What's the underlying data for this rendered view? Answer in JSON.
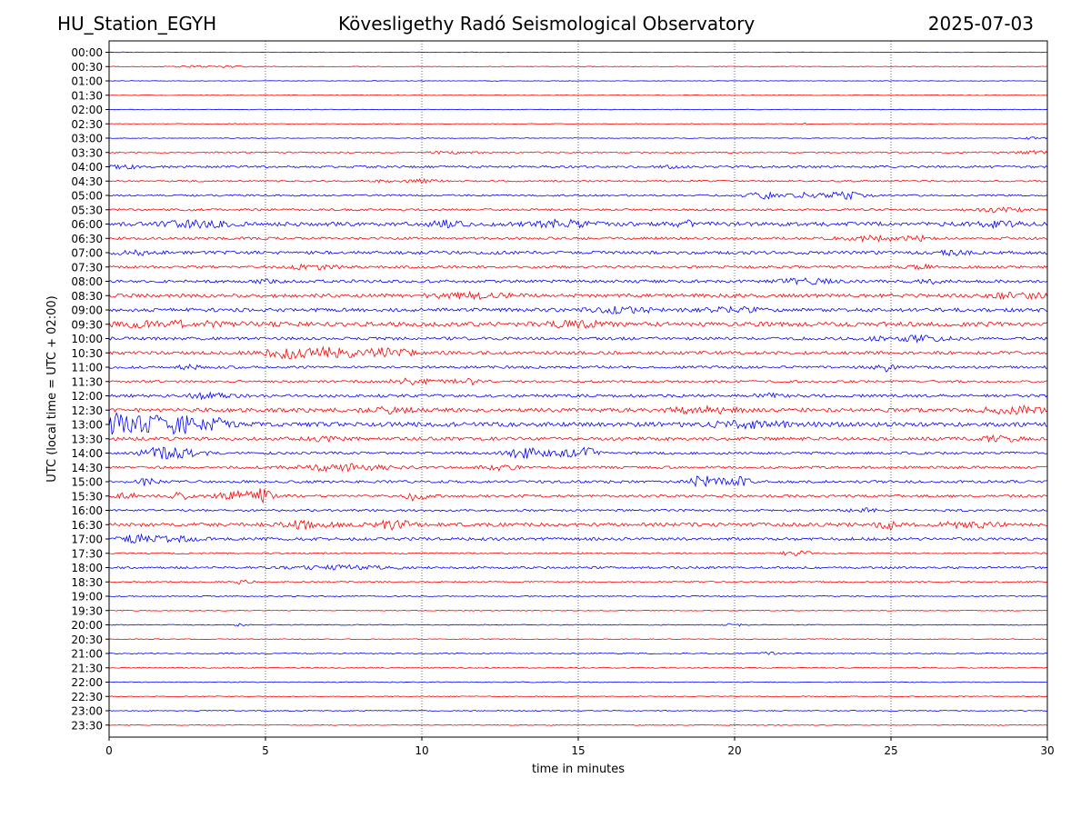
{
  "header": {
    "station": "HU_Station_EGYH",
    "title": "Kövesligethy Radó Seismological Observatory",
    "date": "2025-07-03"
  },
  "colors": {
    "even_row": "#0000ff",
    "odd_row": "#ff0000",
    "grid": "#000000",
    "axes": "#000000"
  },
  "chart_data": {
    "type": "line",
    "chart_kind": "helicorder",
    "xlabel": "time in minutes",
    "ylabel": "UTC (local time = UTC + 02:00)",
    "xlim": [
      0,
      30
    ],
    "xticks": [
      0,
      5,
      10,
      15,
      20,
      25,
      30
    ],
    "vertical_grid": true,
    "rows": [
      {
        "label": "00:00",
        "base": 0.3,
        "events": []
      },
      {
        "label": "00:30",
        "base": 0.4,
        "events": [
          {
            "t": 3.6,
            "amp": 1.0,
            "dur": 0.8
          },
          {
            "t": 2.5,
            "amp": 0.6,
            "dur": 0.6
          }
        ]
      },
      {
        "label": "01:00",
        "base": 0.3,
        "events": []
      },
      {
        "label": "01:30",
        "base": 0.3,
        "events": []
      },
      {
        "label": "02:00",
        "base": 0.35,
        "events": []
      },
      {
        "label": "02:30",
        "base": 0.3,
        "events": [
          {
            "t": 4.0,
            "amp": 0.7,
            "dur": 0.2
          },
          {
            "t": 22.3,
            "amp": 0.7,
            "dur": 0.2
          }
        ]
      },
      {
        "label": "03:00",
        "base": 0.4,
        "events": [
          {
            "t": 29.6,
            "amp": 1.5,
            "dur": 0.4
          }
        ]
      },
      {
        "label": "03:30",
        "base": 0.8,
        "events": [
          {
            "t": 10.8,
            "amp": 1.5,
            "dur": 0.6
          },
          {
            "t": 29.5,
            "amp": 1.5,
            "dur": 0.5
          }
        ]
      },
      {
        "label": "04:00",
        "base": 1.2,
        "events": [
          {
            "t": 0.5,
            "amp": 2.0,
            "dur": 0.4
          },
          {
            "t": 18.0,
            "amp": 1.5,
            "dur": 0.3
          }
        ]
      },
      {
        "label": "04:30",
        "base": 0.9,
        "events": [
          {
            "t": 10.0,
            "amp": 1.5,
            "dur": 0.6
          },
          {
            "t": 8.8,
            "amp": 1.2,
            "dur": 0.3
          }
        ]
      },
      {
        "label": "05:00",
        "base": 1.0,
        "events": [
          {
            "t": 21.0,
            "amp": 3.0,
            "dur": 0.6
          },
          {
            "t": 22.3,
            "amp": 2.5,
            "dur": 0.4
          },
          {
            "t": 23.5,
            "amp": 3.5,
            "dur": 0.7
          }
        ]
      },
      {
        "label": "05:30",
        "base": 1.2,
        "events": [
          {
            "t": 28.5,
            "amp": 2.0,
            "dur": 0.8
          }
        ]
      },
      {
        "label": "06:00",
        "base": 2.2,
        "events": [
          {
            "t": 2.8,
            "amp": 3.0,
            "dur": 1.0
          },
          {
            "t": 10.8,
            "amp": 3.0,
            "dur": 0.5
          },
          {
            "t": 14.5,
            "amp": 3.5,
            "dur": 0.8
          },
          {
            "t": 18.5,
            "amp": 2.5,
            "dur": 0.5
          },
          {
            "t": 28.5,
            "amp": 2.5,
            "dur": 0.8
          }
        ]
      },
      {
        "label": "06:30",
        "base": 1.4,
        "events": [
          {
            "t": 24.5,
            "amp": 2.5,
            "dur": 1.0
          },
          {
            "t": 25.9,
            "amp": 2.5,
            "dur": 0.3
          }
        ]
      },
      {
        "label": "07:00",
        "base": 1.8,
        "events": [
          {
            "t": 0.8,
            "amp": 2.0,
            "dur": 0.5
          },
          {
            "t": 27.0,
            "amp": 2.0,
            "dur": 0.5
          }
        ]
      },
      {
        "label": "07:30",
        "base": 1.4,
        "events": [
          {
            "t": 6.5,
            "amp": 2.0,
            "dur": 0.8
          },
          {
            "t": 26.0,
            "amp": 2.5,
            "dur": 0.4
          }
        ]
      },
      {
        "label": "08:00",
        "base": 1.6,
        "events": [
          {
            "t": 22.3,
            "amp": 2.5,
            "dur": 0.8
          },
          {
            "t": 5.0,
            "amp": 2.0,
            "dur": 0.3
          },
          {
            "t": 26.3,
            "amp": 2.0,
            "dur": 0.4
          }
        ]
      },
      {
        "label": "08:30",
        "base": 2.0,
        "events": [
          {
            "t": 11.5,
            "amp": 2.5,
            "dur": 1.2
          },
          {
            "t": 29.0,
            "amp": 2.5,
            "dur": 1.0
          }
        ]
      },
      {
        "label": "09:00",
        "base": 2.0,
        "events": [
          {
            "t": 16.5,
            "amp": 2.5,
            "dur": 1.0
          },
          {
            "t": 20.0,
            "amp": 2.2,
            "dur": 0.8
          }
        ]
      },
      {
        "label": "09:30",
        "base": 2.4,
        "events": [
          {
            "t": 2.0,
            "amp": 2.5,
            "dur": 2.0
          },
          {
            "t": 15.0,
            "amp": 2.5,
            "dur": 1.0
          }
        ]
      },
      {
        "label": "10:00",
        "base": 1.6,
        "events": [
          {
            "t": 26.0,
            "amp": 2.5,
            "dur": 0.8
          },
          {
            "t": 24.5,
            "amp": 2.0,
            "dur": 0.4
          }
        ]
      },
      {
        "label": "10:30",
        "base": 1.8,
        "events": [
          {
            "t": 6.8,
            "amp": 5.0,
            "dur": 1.5
          },
          {
            "t": 8.7,
            "amp": 4.0,
            "dur": 0.4
          },
          {
            "t": 9.5,
            "amp": 5.0,
            "dur": 0.2
          },
          {
            "t": 5.5,
            "amp": 3.0,
            "dur": 0.4
          }
        ]
      },
      {
        "label": "11:00",
        "base": 1.4,
        "events": [
          {
            "t": 24.8,
            "amp": 4.0,
            "dur": 0.3
          },
          {
            "t": 2.5,
            "amp": 2.0,
            "dur": 0.4
          }
        ]
      },
      {
        "label": "11:30",
        "base": 1.2,
        "events": [
          {
            "t": 9.8,
            "amp": 3.5,
            "dur": 0.7
          },
          {
            "t": 11.5,
            "amp": 3.0,
            "dur": 0.5
          }
        ]
      },
      {
        "label": "12:00",
        "base": 1.6,
        "events": [
          {
            "t": 3.2,
            "amp": 2.5,
            "dur": 0.8
          },
          {
            "t": 21.0,
            "amp": 2.0,
            "dur": 0.4
          }
        ]
      },
      {
        "label": "12:30",
        "base": 2.2,
        "events": [
          {
            "t": 19.0,
            "amp": 3.0,
            "dur": 1.0
          },
          {
            "t": 9.0,
            "amp": 2.5,
            "dur": 0.8
          },
          {
            "t": 29.0,
            "amp": 3.0,
            "dur": 1.0
          }
        ]
      },
      {
        "label": "13:00",
        "base": 2.4,
        "events": [
          {
            "t": 0.2,
            "amp": 8.0,
            "dur": 0.4
          },
          {
            "t": 1.3,
            "amp": 8.0,
            "dur": 1.2
          },
          {
            "t": 2.4,
            "amp": 6.0,
            "dur": 0.4
          },
          {
            "t": 3.4,
            "amp": 6.0,
            "dur": 0.4
          },
          {
            "t": 20.5,
            "amp": 2.5,
            "dur": 1.5
          }
        ]
      },
      {
        "label": "13:30",
        "base": 1.8,
        "events": [
          {
            "t": 7.0,
            "amp": 2.5,
            "dur": 0.5
          },
          {
            "t": 28.5,
            "amp": 2.5,
            "dur": 0.6
          }
        ]
      },
      {
        "label": "14:00",
        "base": 1.4,
        "events": [
          {
            "t": 1.6,
            "amp": 5.0,
            "dur": 0.6
          },
          {
            "t": 2.5,
            "amp": 3.5,
            "dur": 0.6
          },
          {
            "t": 13.3,
            "amp": 5.0,
            "dur": 0.6
          },
          {
            "t": 15.3,
            "amp": 5.0,
            "dur": 0.3
          },
          {
            "t": 14.6,
            "amp": 3.0,
            "dur": 0.5
          }
        ]
      },
      {
        "label": "14:30",
        "base": 1.4,
        "events": [
          {
            "t": 7.5,
            "amp": 3.5,
            "dur": 1.5
          },
          {
            "t": 12.5,
            "amp": 2.5,
            "dur": 0.5
          }
        ]
      },
      {
        "label": "15:00",
        "base": 1.4,
        "events": [
          {
            "t": 1.2,
            "amp": 4.0,
            "dur": 0.3
          },
          {
            "t": 18.9,
            "amp": 5.0,
            "dur": 0.4
          },
          {
            "t": 20.2,
            "amp": 4.0,
            "dur": 0.3
          },
          {
            "t": 19.5,
            "amp": 2.5,
            "dur": 0.6
          }
        ]
      },
      {
        "label": "15:30",
        "base": 1.4,
        "events": [
          {
            "t": 0.7,
            "amp": 3.5,
            "dur": 0.4
          },
          {
            "t": 2.3,
            "amp": 3.5,
            "dur": 0.3
          },
          {
            "t": 4.2,
            "amp": 4.5,
            "dur": 0.7
          },
          {
            "t": 4.9,
            "amp": 5.5,
            "dur": 0.3
          },
          {
            "t": 9.8,
            "amp": 5.0,
            "dur": 0.3
          }
        ]
      },
      {
        "label": "16:00",
        "base": 1.2,
        "events": [
          {
            "t": 24.0,
            "amp": 2.0,
            "dur": 0.6
          }
        ]
      },
      {
        "label": "16:30",
        "base": 2.0,
        "events": [
          {
            "t": 6.3,
            "amp": 4.0,
            "dur": 0.8
          },
          {
            "t": 9.2,
            "amp": 6.0,
            "dur": 0.5
          },
          {
            "t": 24.9,
            "amp": 4.0,
            "dur": 0.4
          },
          {
            "t": 27.5,
            "amp": 2.8,
            "dur": 0.8
          }
        ]
      },
      {
        "label": "17:00",
        "base": 1.6,
        "events": [
          {
            "t": 0.8,
            "amp": 3.5,
            "dur": 0.5
          },
          {
            "t": 2.0,
            "amp": 2.5,
            "dur": 0.8
          }
        ]
      },
      {
        "label": "17:30",
        "base": 0.8,
        "events": [
          {
            "t": 22.0,
            "amp": 2.5,
            "dur": 0.5
          }
        ]
      },
      {
        "label": "18:00",
        "base": 1.2,
        "events": [
          {
            "t": 7.5,
            "amp": 2.0,
            "dur": 1.5
          }
        ]
      },
      {
        "label": "18:30",
        "base": 0.8,
        "events": [
          {
            "t": 4.3,
            "amp": 2.0,
            "dur": 0.3
          }
        ]
      },
      {
        "label": "19:00",
        "base": 0.6,
        "events": []
      },
      {
        "label": "19:30",
        "base": 0.5,
        "events": []
      },
      {
        "label": "20:00",
        "base": 0.5,
        "events": [
          {
            "t": 20.0,
            "amp": 1.5,
            "dur": 0.3
          },
          {
            "t": 4.2,
            "amp": 1.2,
            "dur": 0.2
          }
        ]
      },
      {
        "label": "20:30",
        "base": 0.5,
        "events": []
      },
      {
        "label": "21:00",
        "base": 0.6,
        "events": [
          {
            "t": 21.0,
            "amp": 1.5,
            "dur": 0.3
          }
        ]
      },
      {
        "label": "21:30",
        "base": 0.6,
        "events": []
      },
      {
        "label": "22:00",
        "base": 0.5,
        "events": []
      },
      {
        "label": "22:30",
        "base": 0.5,
        "events": []
      },
      {
        "label": "23:00",
        "base": 0.5,
        "events": []
      },
      {
        "label": "23:30",
        "base": 0.5,
        "events": []
      }
    ]
  }
}
